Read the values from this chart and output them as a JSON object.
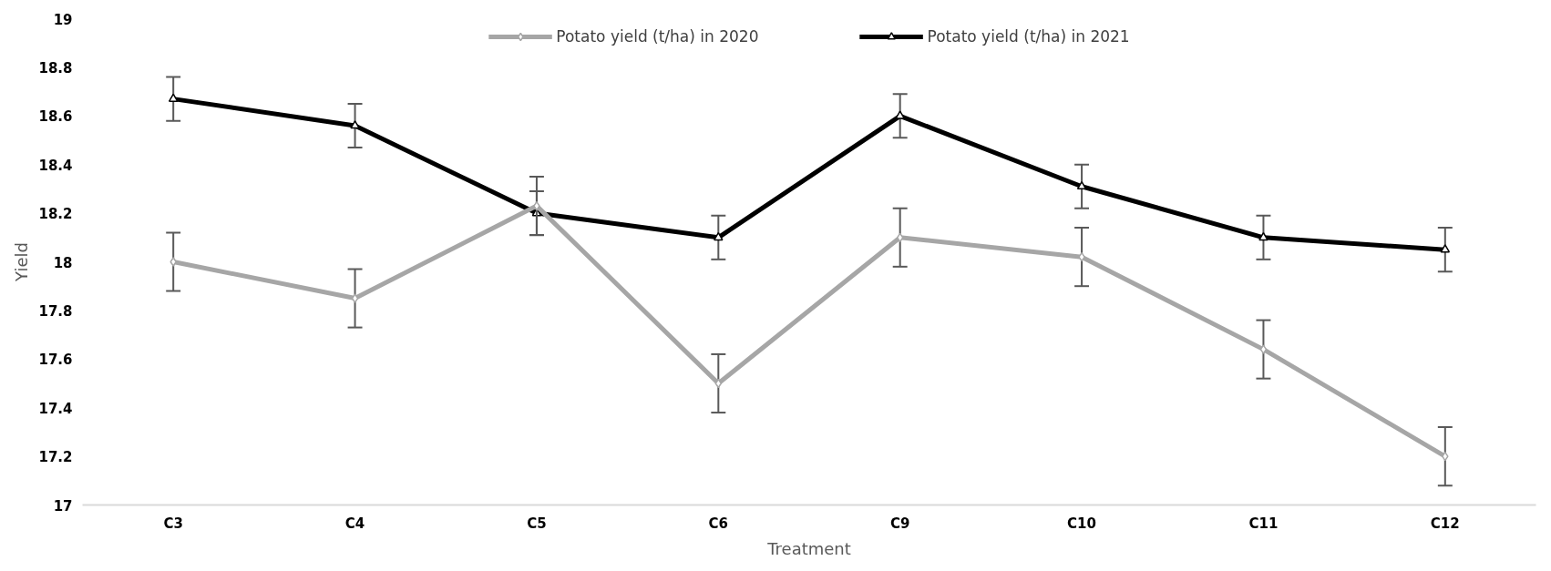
{
  "chart_data": {
    "type": "line",
    "xlabel": "Treatment",
    "ylabel": "Yield",
    "categories": [
      "C3",
      "C4",
      "C5",
      "C6",
      "C9",
      "C10",
      "C11",
      "C12"
    ],
    "ylim": [
      17,
      19
    ],
    "yticks": [
      17,
      17.2,
      17.4,
      17.6,
      17.8,
      18,
      18.2,
      18.4,
      18.6,
      18.8,
      19
    ],
    "grid": false,
    "legend": "top",
    "line_style": "solid",
    "series": [
      {
        "name": "Potato yield (t/ha) in 2020",
        "color": "#a6a6a6",
        "marker": "diamond",
        "values": [
          18.0,
          17.85,
          18.23,
          17.5,
          18.1,
          18.02,
          17.64,
          17.2
        ],
        "errors": [
          0.12,
          0.12,
          0.12,
          0.12,
          0.12,
          0.12,
          0.12,
          0.12
        ]
      },
      {
        "name": "Potato yield (t/ha) in 2021",
        "color": "#000000",
        "marker": "triangle",
        "values": [
          18.67,
          18.56,
          18.2,
          18.1,
          18.6,
          18.31,
          18.1,
          18.05
        ],
        "errors": [
          0.09,
          0.09,
          0.09,
          0.09,
          0.09,
          0.09,
          0.09,
          0.09
        ]
      }
    ]
  }
}
